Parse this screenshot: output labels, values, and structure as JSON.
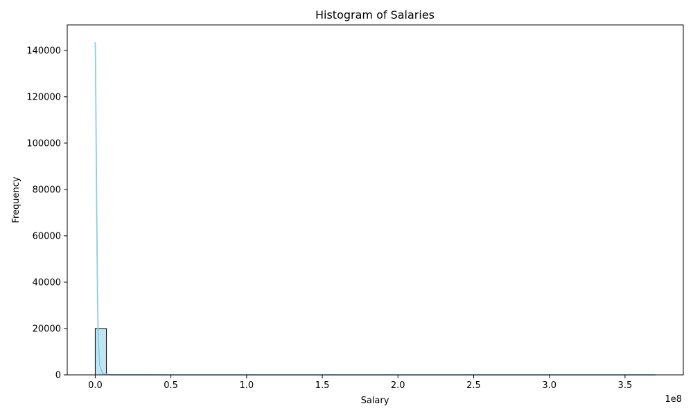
{
  "chart_data": {
    "type": "bar",
    "title": "Histogram of Salaries",
    "xlabel": "Salary",
    "ylabel": "Frequency",
    "x_offset_label": "1e8",
    "xlim": [
      -0.185,
      3.885
    ],
    "ylim": [
      0,
      151000
    ],
    "x_ticks": [
      0.0,
      0.5,
      1.0,
      1.5,
      2.0,
      2.5,
      3.0,
      3.5
    ],
    "x_tick_labels": [
      "0.0",
      "0.5",
      "1.0",
      "1.5",
      "2.0",
      "2.5",
      "3.0",
      "3.5"
    ],
    "y_ticks": [
      0,
      20000,
      40000,
      60000,
      80000,
      100000,
      120000,
      140000
    ],
    "y_tick_labels": [
      "0",
      "20000",
      "40000",
      "60000",
      "80000",
      "100000",
      "120000",
      "140000"
    ],
    "bins": [
      {
        "x0": 0.0,
        "x1": 0.074,
        "count": 20000
      },
      {
        "x0": 0.074,
        "x1": 3.7,
        "count": 0
      }
    ],
    "kde_line": {
      "x": [
        0.0,
        0.002,
        0.005,
        0.01,
        0.015,
        0.02,
        0.03,
        0.05,
        0.1,
        0.5,
        1.0,
        2.0,
        3.0,
        3.7
      ],
      "y": [
        143500,
        135000,
        110000,
        70000,
        35000,
        15000,
        4000,
        500,
        50,
        0,
        0,
        0,
        0,
        0
      ]
    },
    "colors": {
      "bar_fill": "#bfe5f2",
      "bar_edge": "#000000",
      "kde_line": "#87ceeb",
      "axes": "#000000",
      "background": "#ffffff"
    },
    "grid": false
  }
}
